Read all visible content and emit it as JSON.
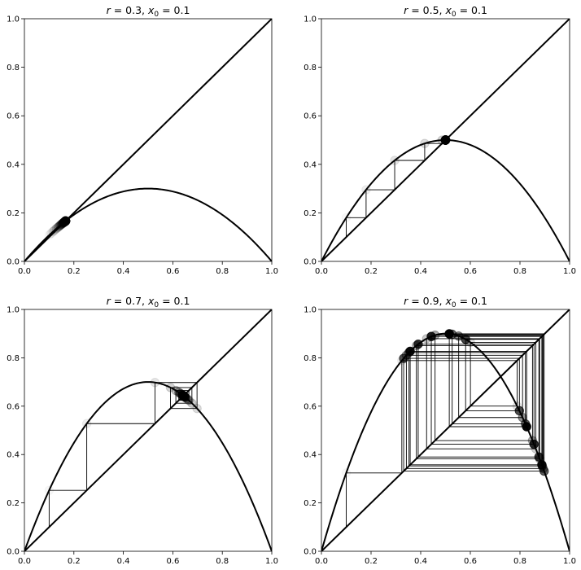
{
  "chart_data": [
    {
      "type": "line",
      "subtype": "cobweb",
      "title_parts": {
        "param": "r",
        "r_value": "0.3",
        "x_sub": "0",
        "x0_value": "0.1"
      },
      "r": 0.3,
      "x0": 0.1,
      "xlim": [
        0,
        1
      ],
      "ylim": [
        0,
        1
      ],
      "x_ticks": [
        "0.0",
        "0.2",
        "0.4",
        "0.6",
        "0.8",
        "1.0"
      ],
      "y_ticks": [
        "0.0",
        "0.2",
        "0.4",
        "0.6",
        "0.8",
        "1.0"
      ],
      "iterations": 30,
      "grid": false,
      "point_color": "#000000"
    },
    {
      "type": "line",
      "subtype": "cobweb",
      "title_parts": {
        "param": "r",
        "r_value": "0.5",
        "x_sub": "0",
        "x0_value": "0.1"
      },
      "r": 0.5,
      "x0": 0.1,
      "xlim": [
        0,
        1
      ],
      "ylim": [
        0,
        1
      ],
      "x_ticks": [
        "0.0",
        "0.2",
        "0.4",
        "0.6",
        "0.8",
        "1.0"
      ],
      "y_ticks": [
        "0.0",
        "0.2",
        "0.4",
        "0.6",
        "0.8",
        "1.0"
      ],
      "iterations": 30,
      "grid": false,
      "point_color": "#000000"
    },
    {
      "type": "line",
      "subtype": "cobweb",
      "title_parts": {
        "param": "r",
        "r_value": "0.7",
        "x_sub": "0",
        "x0_value": "0.1"
      },
      "r": 0.7,
      "x0": 0.1,
      "xlim": [
        0,
        1
      ],
      "ylim": [
        0,
        1
      ],
      "x_ticks": [
        "0.0",
        "0.2",
        "0.4",
        "0.6",
        "0.8",
        "1.0"
      ],
      "y_ticks": [
        "0.0",
        "0.2",
        "0.4",
        "0.6",
        "0.8",
        "1.0"
      ],
      "iterations": 30,
      "grid": false,
      "point_color": "#000000"
    },
    {
      "type": "line",
      "subtype": "cobweb",
      "title_parts": {
        "param": "r",
        "r_value": "0.9",
        "x_sub": "0",
        "x0_value": "0.1"
      },
      "r": 0.9,
      "x0": 0.1,
      "xlim": [
        0,
        1
      ],
      "ylim": [
        0,
        1
      ],
      "x_ticks": [
        "0.0",
        "0.2",
        "0.4",
        "0.6",
        "0.8",
        "1.0"
      ],
      "y_ticks": [
        "0.0",
        "0.2",
        "0.4",
        "0.6",
        "0.8",
        "1.0"
      ],
      "iterations": 30,
      "grid": false,
      "point_color": "#000000"
    }
  ]
}
